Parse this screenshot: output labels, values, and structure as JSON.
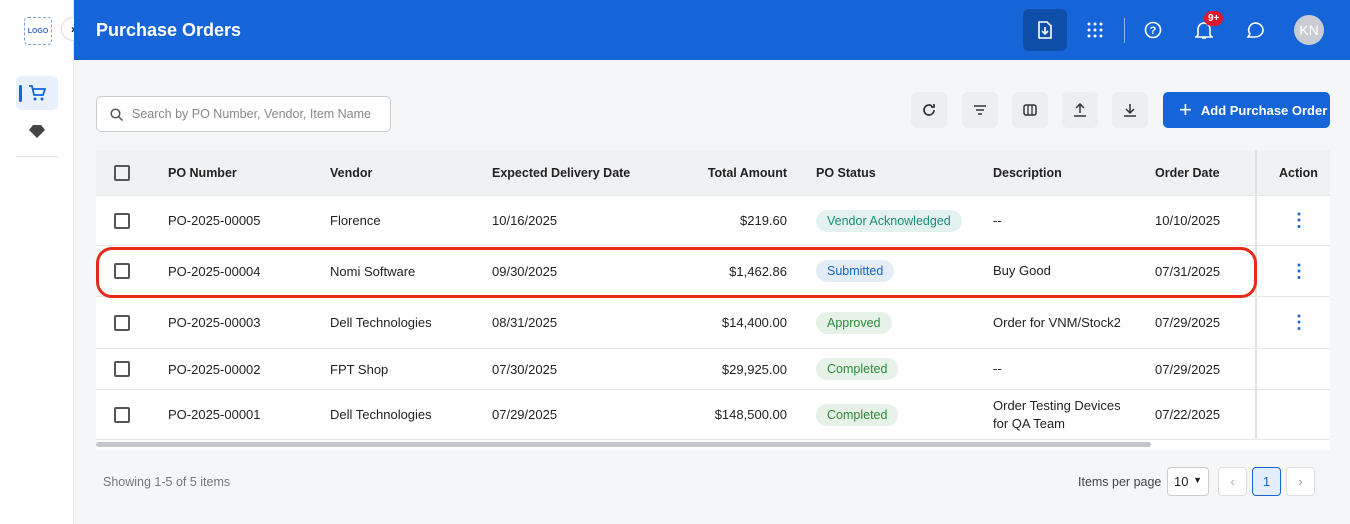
{
  "sidebar": {
    "logo": "LOGO"
  },
  "header": {
    "title": "Purchase Orders",
    "notification_badge": "9+",
    "avatar": "KN"
  },
  "toolbar": {
    "search_placeholder": "Search by PO Number, Vendor, Item Name",
    "add_button": "Add Purchase Order"
  },
  "table": {
    "columns": [
      "PO Number",
      "Vendor",
      "Expected Delivery Date",
      "Total Amount",
      "PO Status",
      "Description",
      "Order Date",
      "Action"
    ],
    "rows": [
      [
        "PO-2025-00005",
        "Florence",
        "10/16/2025",
        "$219.60",
        "Vendor Acknowledged",
        "--",
        "10/10/2025"
      ],
      [
        "PO-2025-00004",
        "Nomi Software",
        "09/30/2025",
        "$1,462.86",
        "Submitted",
        "Buy Good",
        "07/31/2025"
      ],
      [
        "PO-2025-00003",
        "Dell Technologies",
        "08/31/2025",
        "$14,400.00",
        "Approved",
        "Order for VNM/Stock2",
        "07/29/2025"
      ],
      [
        "PO-2025-00002",
        "FPT Shop",
        "07/30/2025",
        "$29,925.00",
        "Completed",
        "--",
        "07/29/2025"
      ],
      [
        "PO-2025-00001",
        "Dell Technologies",
        "07/29/2025",
        "$148,500.00",
        "Completed",
        "Order Testing Devices for QA Team",
        "07/22/2025"
      ]
    ],
    "status_colors": [
      "#17907a",
      "#1565c0",
      "#2e8b3a",
      "#2e8b3a",
      "#2e8b3a"
    ]
  },
  "footer": {
    "summary": "Showing 1-5 of 5 items",
    "items_per_page_label": "Items per page",
    "items_per_page": "10",
    "current_page": "1"
  }
}
